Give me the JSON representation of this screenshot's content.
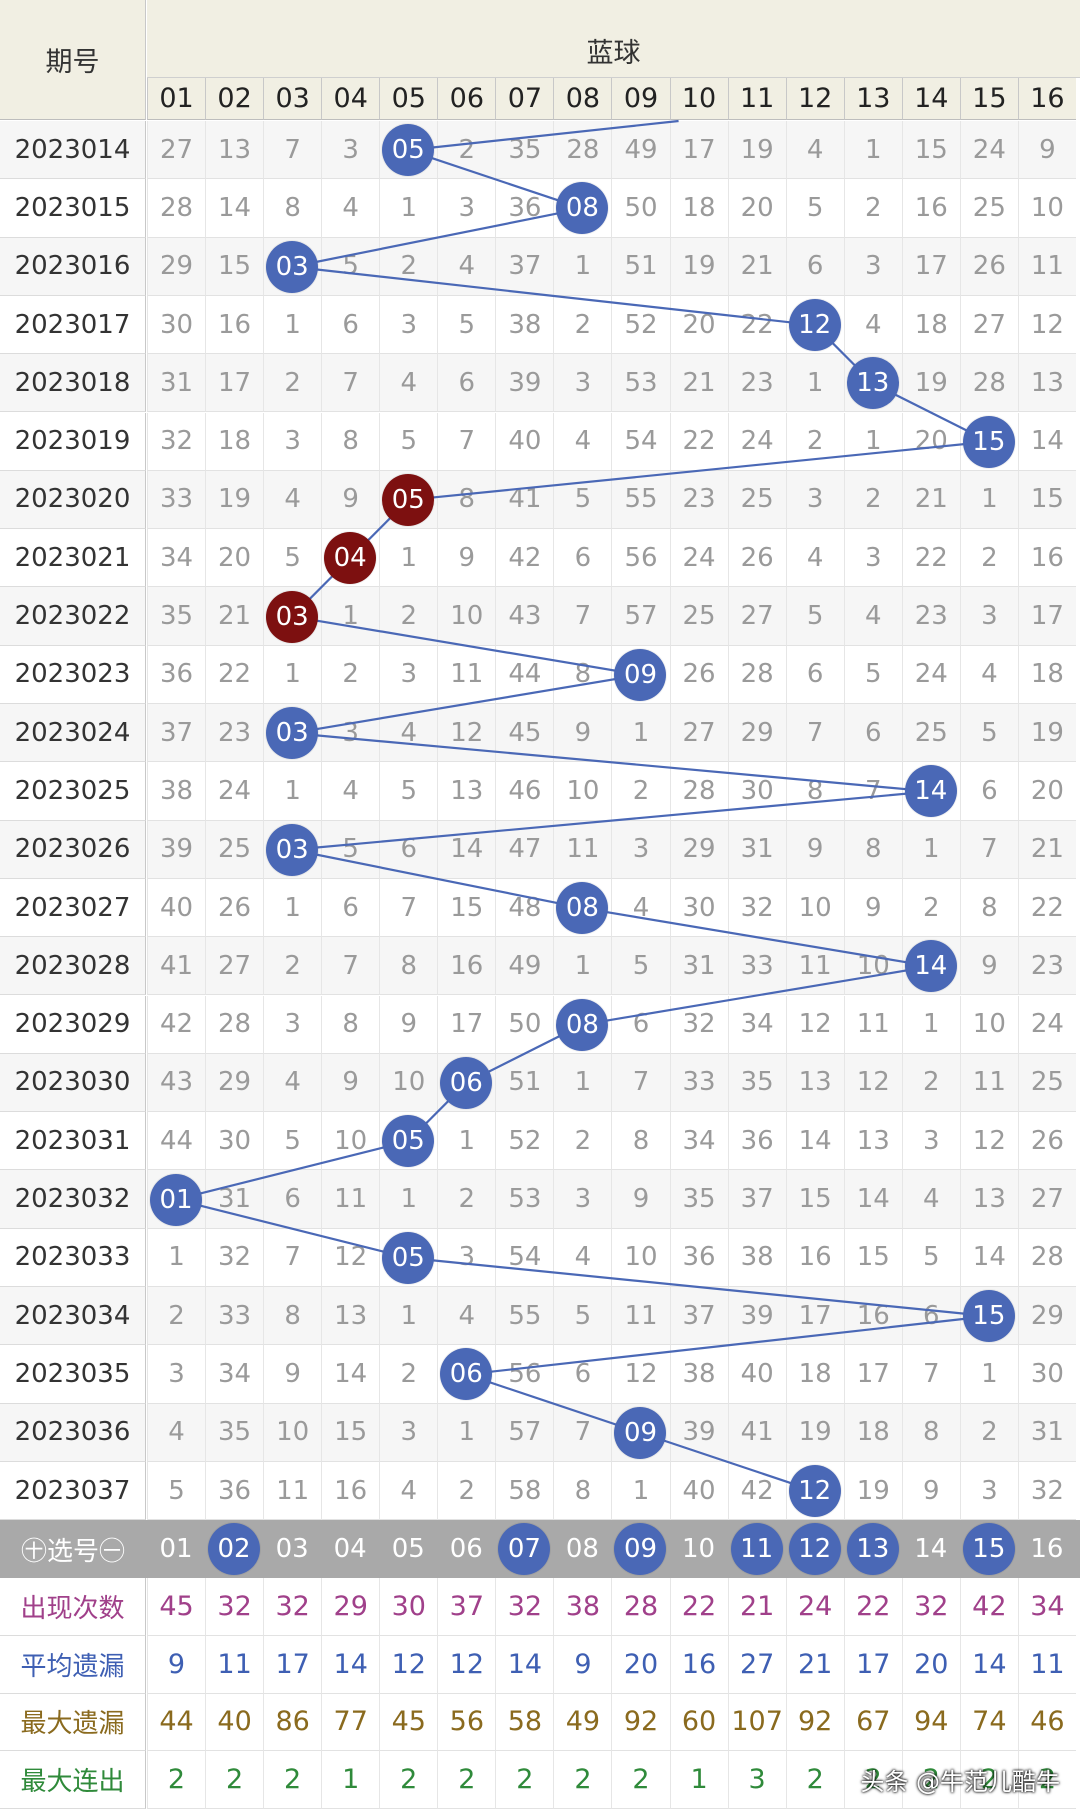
{
  "header": {
    "issue_label": "期号",
    "group_label": "蓝球",
    "columns": [
      "01",
      "02",
      "03",
      "04",
      "05",
      "06",
      "07",
      "08",
      "09",
      "10",
      "11",
      "12",
      "13",
      "14",
      "15",
      "16"
    ]
  },
  "rows": [
    {
      "issue": "2023014",
      "hit": 5,
      "misses": [
        "27",
        "13",
        "7",
        "3",
        "05",
        "2",
        "35",
        "28",
        "49",
        "17",
        "19",
        "4",
        "1",
        "15",
        "24",
        "9"
      ]
    },
    {
      "issue": "2023015",
      "hit": 8,
      "misses": [
        "28",
        "14",
        "8",
        "4",
        "1",
        "3",
        "36",
        "08",
        "50",
        "18",
        "20",
        "5",
        "2",
        "16",
        "25",
        "10"
      ]
    },
    {
      "issue": "2023016",
      "hit": 3,
      "misses": [
        "29",
        "15",
        "03",
        "5",
        "2",
        "4",
        "37",
        "1",
        "51",
        "19",
        "21",
        "6",
        "3",
        "17",
        "26",
        "11"
      ]
    },
    {
      "issue": "2023017",
      "hit": 12,
      "misses": [
        "30",
        "16",
        "1",
        "6",
        "3",
        "5",
        "38",
        "2",
        "52",
        "20",
        "22",
        "12",
        "4",
        "18",
        "27",
        "12"
      ]
    },
    {
      "issue": "2023018",
      "hit": 13,
      "misses": [
        "31",
        "17",
        "2",
        "7",
        "4",
        "6",
        "39",
        "3",
        "53",
        "21",
        "23",
        "1",
        "13",
        "19",
        "28",
        "13"
      ]
    },
    {
      "issue": "2023019",
      "hit": 15,
      "misses": [
        "32",
        "18",
        "3",
        "8",
        "5",
        "7",
        "40",
        "4",
        "54",
        "22",
        "24",
        "2",
        "1",
        "20",
        "15",
        "14"
      ]
    },
    {
      "issue": "2023020",
      "hit": 5,
      "red": true,
      "misses": [
        "33",
        "19",
        "4",
        "9",
        "05",
        "8",
        "41",
        "5",
        "55",
        "23",
        "25",
        "3",
        "2",
        "21",
        "1",
        "15"
      ]
    },
    {
      "issue": "2023021",
      "hit": 4,
      "red": true,
      "misses": [
        "34",
        "20",
        "5",
        "04",
        "1",
        "9",
        "42",
        "6",
        "56",
        "24",
        "26",
        "4",
        "3",
        "22",
        "2",
        "16"
      ]
    },
    {
      "issue": "2023022",
      "hit": 3,
      "red": true,
      "misses": [
        "35",
        "21",
        "03",
        "1",
        "2",
        "10",
        "43",
        "7",
        "57",
        "25",
        "27",
        "5",
        "4",
        "23",
        "3",
        "17"
      ]
    },
    {
      "issue": "2023023",
      "hit": 9,
      "misses": [
        "36",
        "22",
        "1",
        "2",
        "3",
        "11",
        "44",
        "8",
        "09",
        "26",
        "28",
        "6",
        "5",
        "24",
        "4",
        "18"
      ]
    },
    {
      "issue": "2023024",
      "hit": 3,
      "misses": [
        "37",
        "23",
        "03",
        "3",
        "4",
        "12",
        "45",
        "9",
        "1",
        "27",
        "29",
        "7",
        "6",
        "25",
        "5",
        "19"
      ]
    },
    {
      "issue": "2023025",
      "hit": 14,
      "misses": [
        "38",
        "24",
        "1",
        "4",
        "5",
        "13",
        "46",
        "10",
        "2",
        "28",
        "30",
        "8",
        "7",
        "14",
        "6",
        "20"
      ]
    },
    {
      "issue": "2023026",
      "hit": 3,
      "misses": [
        "39",
        "25",
        "03",
        "5",
        "6",
        "14",
        "47",
        "11",
        "3",
        "29",
        "31",
        "9",
        "8",
        "1",
        "7",
        "21"
      ]
    },
    {
      "issue": "2023027",
      "hit": 8,
      "misses": [
        "40",
        "26",
        "1",
        "6",
        "7",
        "15",
        "48",
        "08",
        "4",
        "30",
        "32",
        "10",
        "9",
        "2",
        "8",
        "22"
      ]
    },
    {
      "issue": "2023028",
      "hit": 14,
      "misses": [
        "41",
        "27",
        "2",
        "7",
        "8",
        "16",
        "49",
        "1",
        "5",
        "31",
        "33",
        "11",
        "10",
        "14",
        "9",
        "23"
      ]
    },
    {
      "issue": "2023029",
      "hit": 8,
      "misses": [
        "42",
        "28",
        "3",
        "8",
        "9",
        "17",
        "50",
        "08",
        "6",
        "32",
        "34",
        "12",
        "11",
        "1",
        "10",
        "24"
      ]
    },
    {
      "issue": "2023030",
      "hit": 6,
      "misses": [
        "43",
        "29",
        "4",
        "9",
        "10",
        "06",
        "51",
        "1",
        "7",
        "33",
        "35",
        "13",
        "12",
        "2",
        "11",
        "25"
      ]
    },
    {
      "issue": "2023031",
      "hit": 5,
      "misses": [
        "44",
        "30",
        "5",
        "10",
        "05",
        "1",
        "52",
        "2",
        "8",
        "34",
        "36",
        "14",
        "13",
        "3",
        "12",
        "26"
      ]
    },
    {
      "issue": "2023032",
      "hit": 1,
      "misses": [
        "01",
        "31",
        "6",
        "11",
        "1",
        "2",
        "53",
        "3",
        "9",
        "35",
        "37",
        "15",
        "14",
        "4",
        "13",
        "27"
      ]
    },
    {
      "issue": "2023033",
      "hit": 5,
      "misses": [
        "1",
        "32",
        "7",
        "12",
        "05",
        "3",
        "54",
        "4",
        "10",
        "36",
        "38",
        "16",
        "15",
        "5",
        "14",
        "28"
      ]
    },
    {
      "issue": "2023034",
      "hit": 15,
      "misses": [
        "2",
        "33",
        "8",
        "13",
        "1",
        "4",
        "55",
        "5",
        "11",
        "37",
        "39",
        "17",
        "16",
        "6",
        "15",
        "29"
      ]
    },
    {
      "issue": "2023035",
      "hit": 6,
      "misses": [
        "3",
        "34",
        "9",
        "14",
        "2",
        "06",
        "56",
        "6",
        "12",
        "38",
        "40",
        "18",
        "17",
        "7",
        "1",
        "30"
      ]
    },
    {
      "issue": "2023036",
      "hit": 9,
      "misses": [
        "4",
        "35",
        "10",
        "15",
        "3",
        "1",
        "57",
        "7",
        "09",
        "39",
        "41",
        "19",
        "18",
        "8",
        "2",
        "31"
      ]
    },
    {
      "issue": "2023037",
      "hit": 12,
      "misses": [
        "5",
        "36",
        "11",
        "16",
        "4",
        "2",
        "58",
        "8",
        "1",
        "40",
        "42",
        "12",
        "19",
        "9",
        "3",
        "32"
      ]
    }
  ],
  "selector": {
    "label": "㊉选号㊀",
    "numbers": [
      "01",
      "02",
      "03",
      "04",
      "05",
      "06",
      "07",
      "08",
      "09",
      "10",
      "11",
      "12",
      "13",
      "14",
      "15",
      "16"
    ],
    "selected": [
      2,
      7,
      9,
      11,
      12,
      13,
      15
    ]
  },
  "stats": [
    {
      "label": "出现次数",
      "color": "#a0408a",
      "values": [
        "45",
        "32",
        "32",
        "29",
        "30",
        "37",
        "32",
        "38",
        "28",
        "22",
        "21",
        "24",
        "22",
        "32",
        "42",
        "34"
      ]
    },
    {
      "label": "平均遗漏",
      "color": "#3e5fb3",
      "values": [
        "9",
        "11",
        "17",
        "14",
        "12",
        "12",
        "14",
        "9",
        "20",
        "16",
        "27",
        "21",
        "17",
        "20",
        "14",
        "11"
      ]
    },
    {
      "label": "最大遗漏",
      "color": "#8a6a1e",
      "values": [
        "44",
        "40",
        "86",
        "77",
        "45",
        "56",
        "58",
        "49",
        "92",
        "60",
        "107",
        "92",
        "67",
        "94",
        "74",
        "46"
      ]
    },
    {
      "label": "最大连出",
      "color": "#2f8a3a",
      "values": [
        "2",
        "2",
        "2",
        "1",
        "2",
        "2",
        "2",
        "2",
        "2",
        "1",
        "3",
        "2",
        "2",
        "2",
        "2",
        "2"
      ]
    }
  ],
  "colors": {
    "ball_blue": "#4a68b6",
    "ball_red": "#7d1010",
    "line": "#4a68b6",
    "header_bg": "#f1efe3"
  },
  "watermark": "头条 @牛范儿酷牛"
}
